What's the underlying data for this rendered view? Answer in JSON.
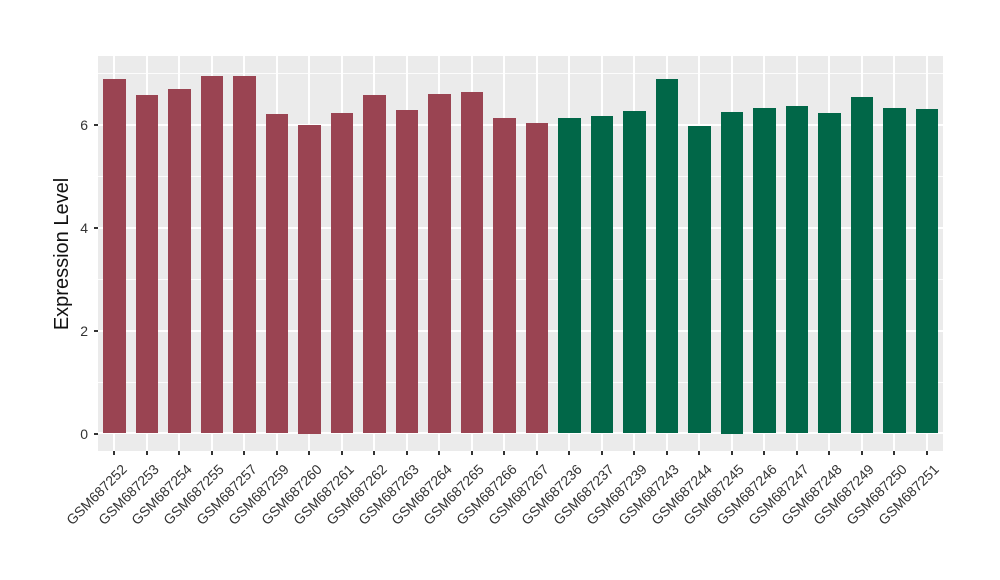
{
  "chart_data": {
    "type": "bar",
    "title": "",
    "xlabel": "",
    "ylabel": "Expression Level",
    "ylim": [
      0,
      7.3
    ],
    "yticks_major": [
      0,
      2,
      4,
      6
    ],
    "yticks_minor": [
      1,
      3,
      5,
      7
    ],
    "grid": "white major and minor horizontal lines plus vertical lines at bar centers on gray panel",
    "legend": "none",
    "panel_bg": "#EBEBEB",
    "categories": [
      "GSM687252",
      "GSM687253",
      "GSM687254",
      "GSM687255",
      "GSM687257",
      "GSM687259",
      "GSM687260",
      "GSM687261",
      "GSM687262",
      "GSM687263",
      "GSM687264",
      "GSM687265",
      "GSM687266",
      "GSM687267",
      "GSM687236",
      "GSM687237",
      "GSM687239",
      "GSM687243",
      "GSM687244",
      "GSM687245",
      "GSM687246",
      "GSM687247",
      "GSM687248",
      "GSM687249",
      "GSM687250",
      "GSM687251"
    ],
    "values": [
      6.88,
      6.57,
      6.69,
      6.95,
      6.94,
      6.2,
      6.0,
      6.22,
      6.57,
      6.29,
      6.6,
      6.64,
      6.13,
      6.02,
      6.13,
      6.16,
      6.27,
      6.88,
      5.97,
      6.25,
      6.33,
      6.36,
      6.22,
      6.53,
      6.33,
      6.31
    ],
    "groups": [
      {
        "color": "#9A4452",
        "count": 14
      },
      {
        "color": "#016748",
        "count": 12
      }
    ]
  }
}
